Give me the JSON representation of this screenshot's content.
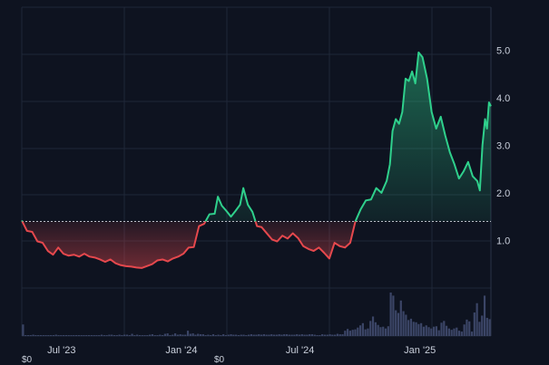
{
  "chart_data": {
    "type": "area",
    "baseline": 1.4,
    "ylim": [
      0,
      5.9
    ],
    "y_ticks": [
      {
        "value": 1.0,
        "label": "1.0"
      },
      {
        "value": 2.0,
        "label": "2.0"
      },
      {
        "value": 3.0,
        "label": "3.0"
      },
      {
        "value": 4.0,
        "label": "4.0"
      },
      {
        "value": 5.0,
        "label": "5.0"
      }
    ],
    "x_range": [
      "2023-05-01",
      "2025-04-20"
    ],
    "x_ticks": [
      {
        "date": "2023-07-01",
        "label": "Jul '23"
      },
      {
        "date": "2024-01-01",
        "label": "Jan '24"
      },
      {
        "date": "2024-07-01",
        "label": "Jul '24"
      },
      {
        "date": "2025-01-01",
        "label": "Jan '25"
      }
    ],
    "grid": true,
    "corner_labels": [
      "$0",
      "$0"
    ],
    "colors": {
      "up": "#2fd08c",
      "down": "#e5484d",
      "baseline": "#d8dce6",
      "volume": "#3b4566",
      "grid": "#1f2738"
    },
    "series": [
      {
        "values": [
          [
            "2023-05-01",
            1.42
          ],
          [
            "2023-05-09",
            1.2
          ],
          [
            "2023-05-17",
            1.18
          ],
          [
            "2023-05-25",
            0.98
          ],
          [
            "2023-06-02",
            0.95
          ],
          [
            "2023-06-10",
            0.78
          ],
          [
            "2023-06-18",
            0.7
          ],
          [
            "2023-06-26",
            0.85
          ],
          [
            "2023-07-04",
            0.72
          ],
          [
            "2023-07-12",
            0.68
          ],
          [
            "2023-07-20",
            0.7
          ],
          [
            "2023-07-28",
            0.66
          ],
          [
            "2023-08-05",
            0.72
          ],
          [
            "2023-08-13",
            0.66
          ],
          [
            "2023-08-21",
            0.64
          ],
          [
            "2023-08-29",
            0.6
          ],
          [
            "2023-09-06",
            0.55
          ],
          [
            "2023-09-14",
            0.6
          ],
          [
            "2023-09-22",
            0.52
          ],
          [
            "2023-09-30",
            0.48
          ],
          [
            "2023-10-08",
            0.46
          ],
          [
            "2023-10-16",
            0.45
          ],
          [
            "2023-10-24",
            0.43
          ],
          [
            "2023-11-01",
            0.42
          ],
          [
            "2023-11-09",
            0.46
          ],
          [
            "2023-11-17",
            0.5
          ],
          [
            "2023-11-25",
            0.58
          ],
          [
            "2023-12-03",
            0.6
          ],
          [
            "2023-12-11",
            0.56
          ],
          [
            "2023-12-19",
            0.62
          ],
          [
            "2023-12-27",
            0.66
          ],
          [
            "2024-01-04",
            0.72
          ],
          [
            "2024-01-12",
            0.85
          ],
          [
            "2024-01-20",
            0.86
          ],
          [
            "2024-01-28",
            1.3
          ],
          [
            "2024-02-05",
            1.35
          ],
          [
            "2024-02-13",
            1.55
          ],
          [
            "2024-02-21",
            1.56
          ],
          [
            "2024-02-26",
            1.92
          ],
          [
            "2024-03-03",
            1.73
          ],
          [
            "2024-03-10",
            1.62
          ],
          [
            "2024-03-17",
            1.5
          ],
          [
            "2024-03-24",
            1.62
          ],
          [
            "2024-03-31",
            1.75
          ],
          [
            "2024-04-05",
            2.1
          ],
          [
            "2024-04-12",
            1.75
          ],
          [
            "2024-04-19",
            1.6
          ],
          [
            "2024-04-26",
            1.3
          ],
          [
            "2024-05-03",
            1.28
          ],
          [
            "2024-05-11",
            1.15
          ],
          [
            "2024-05-19",
            1.02
          ],
          [
            "2024-05-27",
            0.98
          ],
          [
            "2024-06-04",
            1.1
          ],
          [
            "2024-06-12",
            1.04
          ],
          [
            "2024-06-20",
            1.15
          ],
          [
            "2024-06-28",
            1.05
          ],
          [
            "2024-07-06",
            0.88
          ],
          [
            "2024-07-14",
            0.82
          ],
          [
            "2024-07-22",
            0.78
          ],
          [
            "2024-07-30",
            0.85
          ],
          [
            "2024-08-07",
            0.74
          ],
          [
            "2024-08-15",
            0.62
          ],
          [
            "2024-08-23",
            0.95
          ],
          [
            "2024-08-31",
            0.88
          ],
          [
            "2024-09-08",
            0.85
          ],
          [
            "2024-09-16",
            0.95
          ],
          [
            "2024-09-24",
            1.4
          ],
          [
            "2024-10-02",
            1.65
          ],
          [
            "2024-10-10",
            1.84
          ],
          [
            "2024-10-18",
            1.86
          ],
          [
            "2024-10-26",
            2.1
          ],
          [
            "2024-11-03",
            2.0
          ],
          [
            "2024-11-11",
            2.25
          ],
          [
            "2024-11-16",
            2.6
          ],
          [
            "2024-11-20",
            3.3
          ],
          [
            "2024-11-25",
            3.55
          ],
          [
            "2024-11-30",
            3.45
          ],
          [
            "2024-12-05",
            3.7
          ],
          [
            "2024-12-10",
            4.4
          ],
          [
            "2024-12-15",
            4.35
          ],
          [
            "2024-12-20",
            4.55
          ],
          [
            "2024-12-25",
            4.3
          ],
          [
            "2024-12-30",
            4.95
          ],
          [
            "2025-01-05",
            4.85
          ],
          [
            "2025-01-12",
            4.4
          ],
          [
            "2025-01-19",
            3.7
          ],
          [
            "2025-01-26",
            3.35
          ],
          [
            "2025-02-02",
            3.6
          ],
          [
            "2025-02-09",
            3.2
          ],
          [
            "2025-02-16",
            2.85
          ],
          [
            "2025-02-23",
            2.6
          ],
          [
            "2025-03-02",
            2.3
          ],
          [
            "2025-03-09",
            2.45
          ],
          [
            "2025-03-16",
            2.65
          ],
          [
            "2025-03-23",
            2.35
          ],
          [
            "2025-03-30",
            2.25
          ],
          [
            "2025-04-03",
            2.05
          ],
          [
            "2025-04-07",
            3.0
          ],
          [
            "2025-04-11",
            3.55
          ],
          [
            "2025-04-14",
            3.35
          ],
          [
            "2025-04-17",
            3.9
          ],
          [
            "2025-04-20",
            3.82
          ]
        ]
      }
    ],
    "volume": [
      0.26,
      0.02,
      0.02,
      0.02,
      0.03,
      0.02,
      0.02,
      0.02,
      0.02,
      0.02,
      0.02,
      0.02,
      0.02,
      0.03,
      0.02,
      0.02,
      0.02,
      0.02,
      0.02,
      0.02,
      0.02,
      0.02,
      0.02,
      0.02,
      0.02,
      0.02,
      0.02,
      0.02,
      0.02,
      0.02,
      0.02,
      0.03,
      0.02,
      0.02,
      0.03,
      0.03,
      0.02,
      0.02,
      0.03,
      0.02,
      0.03,
      0.03,
      0.02,
      0.05,
      0.02,
      0.03,
      0.02,
      0.02,
      0.02,
      0.02,
      0.03,
      0.04,
      0.02,
      0.02,
      0.03,
      0.02,
      0.05,
      0.06,
      0.02,
      0.03,
      0.06,
      0.03,
      0.04,
      0.03,
      0.03,
      0.12,
      0.05,
      0.06,
      0.03,
      0.05,
      0.04,
      0.04,
      0.02,
      0.03,
      0.02,
      0.04,
      0.02,
      0.03,
      0.02,
      0.04,
      0.02,
      0.03,
      0.04,
      0.03,
      0.03,
      0.02,
      0.03,
      0.03,
      0.02,
      0.03,
      0.04,
      0.03,
      0.03,
      0.04,
      0.03,
      0.04,
      0.03,
      0.03,
      0.04,
      0.03,
      0.03,
      0.04,
      0.03,
      0.04,
      0.04,
      0.03,
      0.03,
      0.03,
      0.04,
      0.03,
      0.04,
      0.03,
      0.03,
      0.04,
      0.04,
      0.03,
      0.02,
      0.02,
      0.04,
      0.03,
      0.03,
      0.04,
      0.03,
      0.03,
      0.05,
      0.04,
      0.04,
      0.12,
      0.16,
      0.12,
      0.14,
      0.15,
      0.19,
      0.24,
      0.29,
      0.15,
      0.17,
      0.34,
      0.44,
      0.31,
      0.25,
      0.2,
      0.21,
      0.17,
      0.22,
      0.98,
      0.91,
      0.58,
      0.52,
      0.8,
      0.56,
      0.48,
      0.36,
      0.39,
      0.32,
      0.31,
      0.27,
      0.29,
      0.21,
      0.24,
      0.2,
      0.17,
      0.21,
      0.22,
      0.13,
      0.3,
      0.34,
      0.23,
      0.17,
      0.14,
      0.17,
      0.19,
      0.12,
      0.1,
      0.26,
      0.37,
      0.33,
      0.1,
      0.53,
      0.74,
      0.32,
      0.46,
      0.91,
      0.41,
      0.38
    ]
  }
}
